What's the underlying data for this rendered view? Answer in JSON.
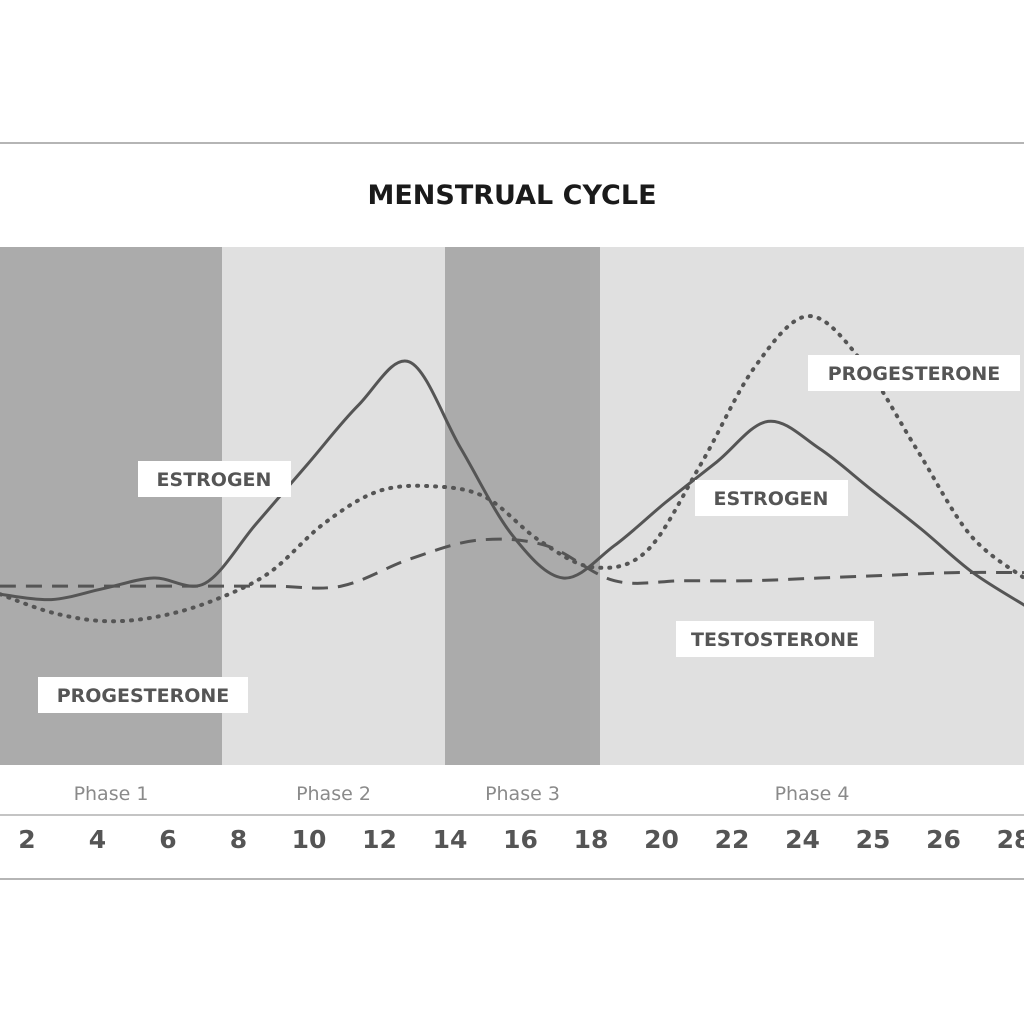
{
  "chart_data": {
    "type": "line",
    "title": "MENSTRUAL CYCLE",
    "x_tick_labels": [
      "2",
      "4",
      "6",
      "8",
      "10",
      "12",
      "14",
      "16",
      "18",
      "20",
      "22",
      "24",
      "25",
      "26",
      "28"
    ],
    "phases": [
      {
        "label": "Phase 1",
        "shade": "#ababab"
      },
      {
        "label": "Phase 2",
        "shade": "#e0e0e0"
      },
      {
        "label": "Phase 3",
        "shade": "#ababab"
      },
      {
        "label": "Phase 4",
        "shade": "#e0e0e0"
      }
    ],
    "series": [
      {
        "name": "ESTROGEN",
        "style": "solid",
        "color": "#555555",
        "values": [
          0.14,
          0.12,
          0.16,
          0.2,
          0.18,
          0.4,
          0.62,
          0.84,
          1.0,
          0.68,
          0.36,
          0.2,
          0.32,
          0.48,
          0.63,
          0.78,
          0.68,
          0.53,
          0.38,
          0.22,
          0.1
        ]
      },
      {
        "name": "PROGESTERONE",
        "style": "dotted",
        "color": "#555555",
        "values": [
          0.14,
          0.07,
          0.04,
          0.06,
          0.12,
          0.22,
          0.4,
          0.52,
          0.54,
          0.5,
          0.34,
          0.24,
          0.3,
          0.62,
          0.98,
          1.17,
          1.0,
          0.68,
          0.36,
          0.2
        ]
      },
      {
        "name": "TESTOSTERONE",
        "style": "dashed",
        "color": "#555555",
        "values": [
          0.17,
          0.17,
          0.17,
          0.17,
          0.17,
          0.17,
          0.27,
          0.34,
          0.32,
          0.19,
          0.19,
          0.19,
          0.2,
          0.21,
          0.22,
          0.22
        ]
      }
    ],
    "annotations": [
      "ESTROGEN",
      "PROGESTERONE",
      "ESTROGEN",
      "PROGESTERONE",
      "TESTOSTERONE"
    ],
    "legend": "none"
  }
}
